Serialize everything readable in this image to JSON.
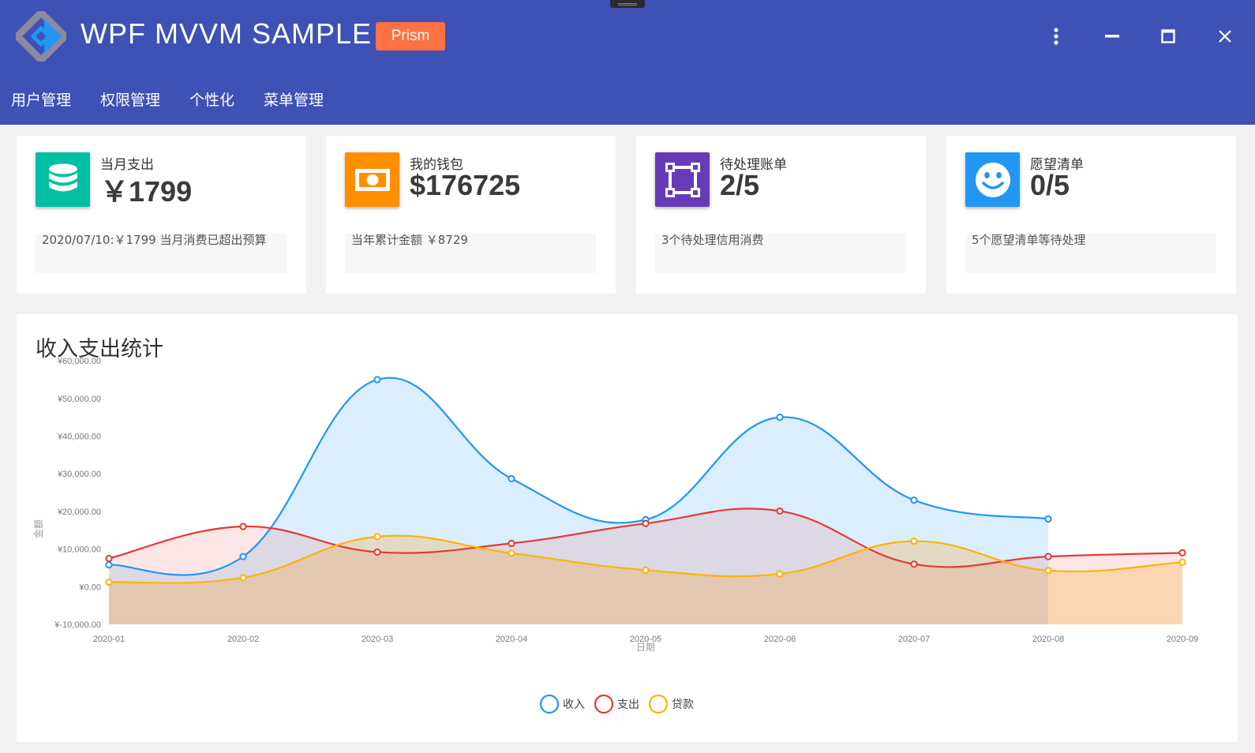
{
  "app": {
    "title": "WPF MVVM SAMPLE",
    "badge": "Prism",
    "header_color": "#3f51b5",
    "badge_color": "#ff7043"
  },
  "window_controls": [
    {
      "name": "more-vert-icon",
      "label": "more"
    },
    {
      "name": "minimize-icon",
      "label": "minimize"
    },
    {
      "name": "maximize-icon",
      "label": "maximize"
    },
    {
      "name": "close-icon",
      "label": "close"
    }
  ],
  "nav": {
    "items": [
      "用户管理",
      "权限管理",
      "个性化",
      "菜单管理"
    ]
  },
  "cards": [
    {
      "label": "当月支出",
      "value": "￥1799",
      "note": "2020/07/10:￥1799  当月消费已超出预算",
      "icon": "database-icon",
      "color": "#00bfa5"
    },
    {
      "label": "我的钱包",
      "value": "$176725",
      "note": "当年累计金额  ￥8729",
      "icon": "cash-icon",
      "color": "#ff8f00"
    },
    {
      "label": "待处理账单",
      "value": "2/5",
      "note": "3个待处理信用消费",
      "icon": "vector-square-icon",
      "color": "#673ab7"
    },
    {
      "label": "愿望清单",
      "value": "0/5",
      "note": "5个愿望清单等待处理",
      "icon": "smiley-icon",
      "color": "#2196f3"
    }
  ],
  "chart_panel": {
    "title": "收入支出统计"
  },
  "chart_data": {
    "type": "area",
    "title": "收入支出统计",
    "xlabel": "日期",
    "ylabel": "金额",
    "categories": [
      "2020-01",
      "2020-02",
      "2020-03",
      "2020-04",
      "2020-05",
      "2020-06",
      "2020-07",
      "2020-08",
      "2020-09"
    ],
    "y_ticks": [
      "¥-10,000.00",
      "¥0.00",
      "¥10,000.00",
      "¥20,000.00",
      "¥30,000.00",
      "¥40,000.00",
      "¥50,000.00",
      "¥60,000.00"
    ],
    "ylim": [
      -10000,
      60000
    ],
    "grid": false,
    "legend": "bottom-center",
    "series": [
      {
        "name": "收入",
        "color": "#2196f3",
        "fill": "rgba(33,150,243,0.16)",
        "values": [
          5800,
          8000,
          55000,
          28700,
          17800,
          45000,
          23000,
          18000,
          null
        ]
      },
      {
        "name": "支出",
        "color": "#e53935",
        "fill": "rgba(229,57,53,0.12)",
        "values": [
          7500,
          16000,
          9200,
          11500,
          16800,
          20100,
          6000,
          8000,
          9000
        ]
      },
      {
        "name": "贷款",
        "color": "#ffb300",
        "fill": "rgba(255,152,0,0.22)",
        "values": [
          1200,
          2400,
          13300,
          8900,
          4400,
          3400,
          12100,
          4300,
          6500
        ]
      }
    ]
  }
}
